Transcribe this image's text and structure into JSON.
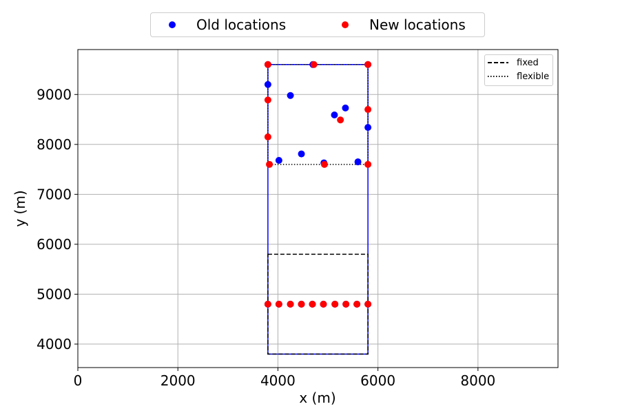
{
  "chart_data": {
    "type": "scatter",
    "xlabel": "x (m)",
    "ylabel": "y (m)",
    "xlim": [
      0,
      9600
    ],
    "ylim": [
      3530,
      9900
    ],
    "xticks": [
      0,
      2000,
      4000,
      6000,
      8000
    ],
    "xtick_labels": [
      "0",
      "2000",
      "4000",
      "6000",
      "8000"
    ],
    "yticks": [
      4000,
      5000,
      6000,
      7000,
      8000,
      9000
    ],
    "ytick_labels": [
      "4000",
      "5000",
      "6000",
      "7000",
      "8000",
      "9000"
    ],
    "grid": true,
    "legend_top": [
      {
        "label": "Old locations",
        "color": "#0000ff"
      },
      {
        "label": "New locations",
        "color": "#ff0000"
      }
    ],
    "legend_inner": [
      {
        "label": "fixed",
        "style": "dashed"
      },
      {
        "label": "flexible",
        "style": "dotted"
      }
    ],
    "legend_inner_position": "top-right",
    "blue_rectangle": {
      "x": [
        3800,
        5800
      ],
      "y": [
        3800,
        9600
      ],
      "color": "#0000ff"
    },
    "fixed_box": {
      "x": [
        3800,
        5800
      ],
      "y": [
        3800,
        5800
      ],
      "style": "dashed"
    },
    "flexible_box": {
      "x": [
        3800,
        5800
      ],
      "y": [
        7600,
        9600
      ],
      "style": "dotted"
    },
    "series": [
      {
        "name": "Old locations",
        "color": "#0000ff",
        "points": [
          [
            3800,
            9600
          ],
          [
            4700,
            9600
          ],
          [
            5800,
            9600
          ],
          [
            3800,
            9200
          ],
          [
            4250,
            8980
          ],
          [
            5350,
            8730
          ],
          [
            5130,
            8590
          ],
          [
            5800,
            8340
          ],
          [
            4470,
            7810
          ],
          [
            4020,
            7680
          ],
          [
            4920,
            7630
          ],
          [
            5600,
            7650
          ],
          [
            3800,
            4800
          ],
          [
            4020,
            4800
          ],
          [
            4250,
            4800
          ],
          [
            4470,
            4800
          ],
          [
            4690,
            4800
          ],
          [
            4910,
            4800
          ],
          [
            5140,
            4800
          ],
          [
            5360,
            4800
          ],
          [
            5580,
            4800
          ],
          [
            5800,
            4800
          ]
        ]
      },
      {
        "name": "New locations",
        "color": "#ff0000",
        "points": [
          [
            3800,
            9600
          ],
          [
            4720,
            9600
          ],
          [
            5800,
            9600
          ],
          [
            3800,
            8890
          ],
          [
            5800,
            8700
          ],
          [
            5250,
            8490
          ],
          [
            3800,
            8150
          ],
          [
            3830,
            7600
          ],
          [
            4930,
            7600
          ],
          [
            5800,
            7600
          ],
          [
            3800,
            4800
          ],
          [
            4020,
            4800
          ],
          [
            4250,
            4800
          ],
          [
            4470,
            4800
          ],
          [
            4690,
            4800
          ],
          [
            4910,
            4800
          ],
          [
            5140,
            4800
          ],
          [
            5360,
            4800
          ],
          [
            5580,
            4800
          ],
          [
            5800,
            4800
          ]
        ]
      }
    ]
  }
}
